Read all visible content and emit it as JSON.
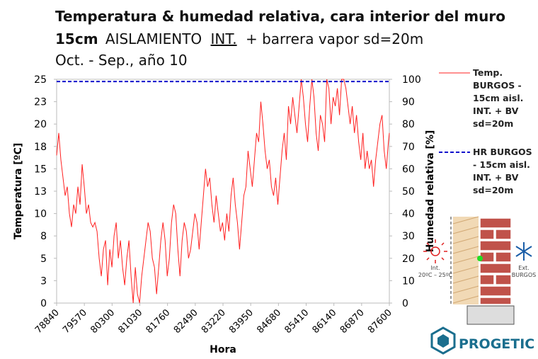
{
  "chart_data": {
    "type": "line",
    "title": {
      "line1": "Temperatura & humedad relativa, cara interior del muro",
      "line2": [
        "15cm",
        "AISLAMIENTO",
        "INT.",
        "+ barrera vapor sd=20m"
      ],
      "line3": "Oct. - Sep., año 10"
    },
    "xlabel": "Hora",
    "ylabel": "Temperatura [ºC]",
    "y2label": "Humedad relativa [%]",
    "xlim": [
      78840,
      87600
    ],
    "xticks": [
      78840,
      79570,
      80300,
      81030,
      81760,
      82490,
      83220,
      83950,
      84680,
      85410,
      86140,
      86870,
      87600
    ],
    "ylim": [
      0,
      25
    ],
    "yticks": [
      0,
      {
        "value": 2.5,
        "label": "3"
      },
      5,
      {
        "value": 7.5,
        "label": "8"
      },
      10,
      {
        "value": 12.5,
        "label": "13"
      },
      15,
      {
        "value": 17.5,
        "label": "18"
      },
      20,
      {
        "value": 22.5,
        "label": "23"
      },
      25
    ],
    "y2lim": [
      0,
      100
    ],
    "y2ticks": [
      0,
      10,
      20,
      30,
      40,
      50,
      60,
      70,
      80,
      90,
      100
    ],
    "grid": false,
    "legend": "right",
    "series": [
      {
        "name": "Temp. BURGOS - 15cm aisl. INT. + BV sd=20m",
        "color": "#ff2020",
        "style": "solid",
        "x": [
          78840,
          78896,
          78952,
          79008,
          79064,
          79120,
          79176,
          79232,
          79288,
          79344,
          79400,
          79456,
          79512,
          79568,
          79624,
          79680,
          79736,
          79792,
          79848,
          79904,
          79960,
          80016,
          80072,
          80128,
          80184,
          80240,
          80296,
          80352,
          80408,
          80464,
          80520,
          80576,
          80632,
          80688,
          80744,
          80800,
          80856,
          80912,
          80968,
          81024,
          81080,
          81136,
          81192,
          81248,
          81304,
          81360,
          81416,
          81472,
          81528,
          81584,
          81640,
          81696,
          81752,
          81808,
          81864,
          81920,
          81976,
          82032,
          82088,
          82144,
          82200,
          82256,
          82312,
          82368,
          82424,
          82480,
          82536,
          82592,
          82648,
          82704,
          82760,
          82816,
          82872,
          82928,
          82984,
          83040,
          83096,
          83152,
          83208,
          83264,
          83320,
          83376,
          83432,
          83488,
          83544,
          83600,
          83656,
          83712,
          83768,
          83824,
          83880,
          83936,
          83992,
          84048,
          84104,
          84160,
          84216,
          84272,
          84328,
          84384,
          84440,
          84496,
          84552,
          84608,
          84664,
          84720,
          84776,
          84832,
          84888,
          84944,
          85000,
          85056,
          85112,
          85168,
          85224,
          85280,
          85336,
          85392,
          85448,
          85504,
          85560,
          85616,
          85672,
          85728,
          85784,
          85840,
          85896,
          85952,
          86008,
          86064,
          86120,
          86176,
          86232,
          86288,
          86344,
          86400,
          86456,
          86512,
          86568,
          86624,
          86680,
          86736,
          86792,
          86848,
          86904,
          86960,
          87016,
          87072,
          87128,
          87184,
          87240,
          87296,
          87352,
          87408,
          87464,
          87520,
          87576,
          87600
        ],
        "values": [
          16.5,
          19,
          16,
          14,
          12,
          13,
          10,
          8.5,
          11,
          10,
          13,
          11,
          15.5,
          13,
          10,
          11,
          9,
          8.5,
          9,
          8,
          5,
          3,
          6,
          7,
          2,
          6,
          4,
          7.5,
          9,
          5,
          7,
          4,
          2,
          5,
          7,
          3,
          0,
          4,
          1,
          0,
          3,
          5,
          7,
          9,
          8,
          5,
          4,
          1,
          4,
          7,
          9,
          7,
          3,
          5,
          9,
          11,
          10,
          6,
          3,
          7,
          9,
          8,
          5,
          6,
          8,
          10,
          9,
          6,
          9,
          12,
          15,
          13,
          14,
          11,
          9,
          12,
          10,
          8,
          9,
          7,
          10,
          8,
          12,
          14,
          11,
          9,
          6,
          9,
          12,
          13,
          17,
          15,
          13,
          16,
          19,
          18,
          22.5,
          20,
          17,
          15,
          16,
          13,
          12,
          14,
          11,
          14,
          17,
          19,
          16,
          22,
          20,
          23,
          21,
          19,
          22,
          25,
          23,
          20,
          18,
          22,
          25,
          23,
          19,
          17,
          21,
          20,
          18,
          25,
          24,
          20,
          23,
          22,
          24,
          21,
          25,
          25,
          24,
          22,
          20,
          22,
          19,
          21,
          18,
          16,
          19,
          15,
          17,
          15,
          16,
          13,
          16,
          18,
          20,
          21,
          17,
          15,
          18,
          19
        ]
      },
      {
        "name": "HR BURGOS - 15cm aisl. INT. + BV sd=20m",
        "color": "#1010cc",
        "style": "dashed",
        "axis": "y2",
        "x": [
          78840,
          87600
        ],
        "values": [
          99,
          99
        ]
      }
    ]
  },
  "illustration": {
    "int_label": "Int.",
    "int_range": "20ºC – 25ºC",
    "ext_label": "Ext.",
    "ext_city": "BURGOS"
  },
  "logo": "PROGETIC"
}
